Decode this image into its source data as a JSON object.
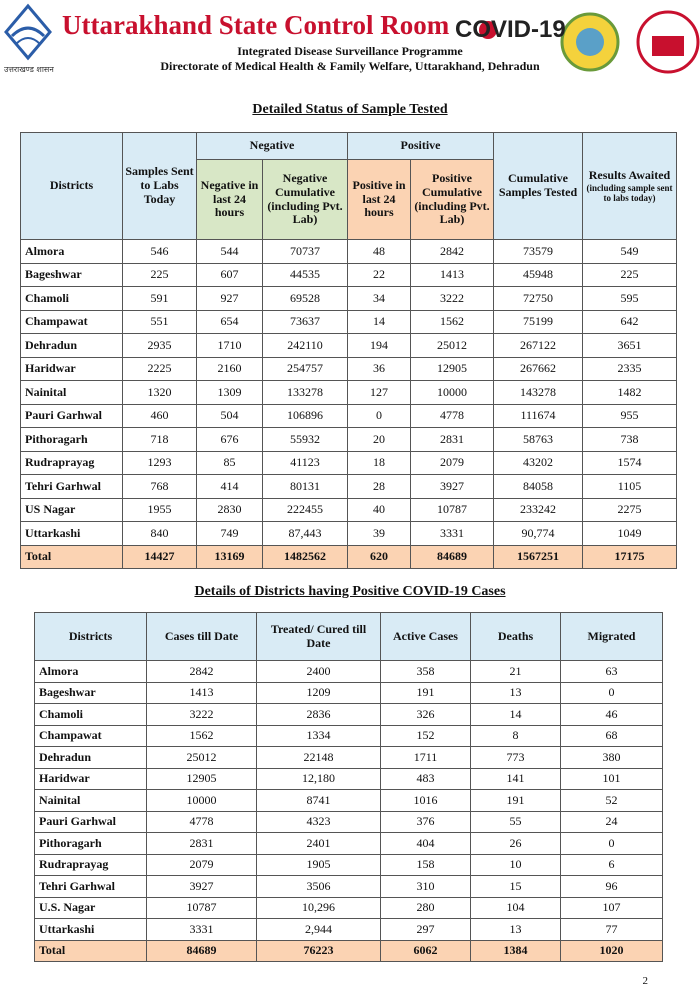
{
  "header": {
    "title": "Uttarakhand State Control Room",
    "badge": "COVID-19",
    "line1": "Integrated Disease Surveillance Programme",
    "line2": "Directorate of Medical Health & Family Welfare, Uttarakhand, Dehradun",
    "logo_text": "उत्तराखण्ड शासन"
  },
  "table1": {
    "title": "Detailed Status of Sample Tested",
    "headers": {
      "districts": "Districts",
      "samples": "Samples Sent to Labs Today",
      "negative": "Negative",
      "positive": "Positive",
      "cumulative": "Cumulative Samples Tested",
      "awaited": "Results Awaited",
      "awaited_note": "(including sample sent to labs today)",
      "neg24": "Negative in last 24 hours",
      "negcum": "Negative Cumulative (including Pvt. Lab)",
      "pos24": "Positive in last 24 hours",
      "poscum": "Positive Cumulative (including Pvt. Lab)"
    },
    "rows": [
      [
        "Almora",
        "546",
        "544",
        "70737",
        "48",
        "2842",
        "73579",
        "549"
      ],
      [
        "Bageshwar",
        "225",
        "607",
        "44535",
        "22",
        "1413",
        "45948",
        "225"
      ],
      [
        "Chamoli",
        "591",
        "927",
        "69528",
        "34",
        "3222",
        "72750",
        "595"
      ],
      [
        "Champawat",
        "551",
        "654",
        "73637",
        "14",
        "1562",
        "75199",
        "642"
      ],
      [
        "Dehradun",
        "2935",
        "1710",
        "242110",
        "194",
        "25012",
        "267122",
        "3651"
      ],
      [
        "Haridwar",
        "2225",
        "2160",
        "254757",
        "36",
        "12905",
        "267662",
        "2335"
      ],
      [
        "Nainital",
        "1320",
        "1309",
        "133278",
        "127",
        "10000",
        "143278",
        "1482"
      ],
      [
        "Pauri Garhwal",
        "460",
        "504",
        "106896",
        "0",
        "4778",
        "111674",
        "955"
      ],
      [
        "Pithoragarh",
        "718",
        "676",
        "55932",
        "20",
        "2831",
        "58763",
        "738"
      ],
      [
        "Rudraprayag",
        "1293",
        "85",
        "41123",
        "18",
        "2079",
        "43202",
        "1574"
      ],
      [
        "Tehri Garhwal",
        "768",
        "414",
        "80131",
        "28",
        "3927",
        "84058",
        "1105"
      ],
      [
        "US Nagar",
        "1955",
        "2830",
        "222455",
        "40",
        "10787",
        "233242",
        "2275"
      ],
      [
        "Uttarkashi",
        "840",
        "749",
        "87,443",
        "39",
        "3331",
        "90,774",
        "1049"
      ]
    ],
    "total": [
      "Total",
      "14427",
      "13169",
      "1482562",
      "620",
      "84689",
      "1567251",
      "17175"
    ]
  },
  "table2": {
    "title": "Details of Districts having Positive COVID-19 Cases",
    "headers": [
      "Districts",
      "Cases till Date",
      "Treated/ Cured till Date",
      "Active Cases",
      "Deaths",
      "Migrated"
    ],
    "rows": [
      [
        "Almora",
        "2842",
        "2400",
        "358",
        "21",
        "63"
      ],
      [
        "Bageshwar",
        "1413",
        "1209",
        "191",
        "13",
        "0"
      ],
      [
        "Chamoli",
        "3222",
        "2836",
        "326",
        "14",
        "46"
      ],
      [
        "Champawat",
        "1562",
        "1334",
        "152",
        "8",
        "68"
      ],
      [
        "Dehradun",
        "25012",
        "22148",
        "1711",
        "773",
        "380"
      ],
      [
        "Haridwar",
        "12905",
        "12,180",
        "483",
        "141",
        "101"
      ],
      [
        "Nainital",
        "10000",
        "8741",
        "1016",
        "191",
        "52"
      ],
      [
        "Pauri Garhwal",
        "4778",
        "4323",
        "376",
        "55",
        "24"
      ],
      [
        "Pithoragarh",
        "2831",
        "2401",
        "404",
        "26",
        "0"
      ],
      [
        "Rudraprayag",
        "2079",
        "1905",
        "158",
        "10",
        "6"
      ],
      [
        "Tehri Garhwal",
        "3927",
        "3506",
        "310",
        "15",
        "96"
      ],
      [
        "U.S. Nagar",
        "10787",
        "10,296",
        "280",
        "104",
        "107"
      ],
      [
        "Uttarkashi",
        "3331",
        "2,944",
        "297",
        "13",
        "77"
      ]
    ],
    "total": [
      "Total",
      "84689",
      "76223",
      "6062",
      "1384",
      "1020"
    ]
  },
  "page_number": "2"
}
